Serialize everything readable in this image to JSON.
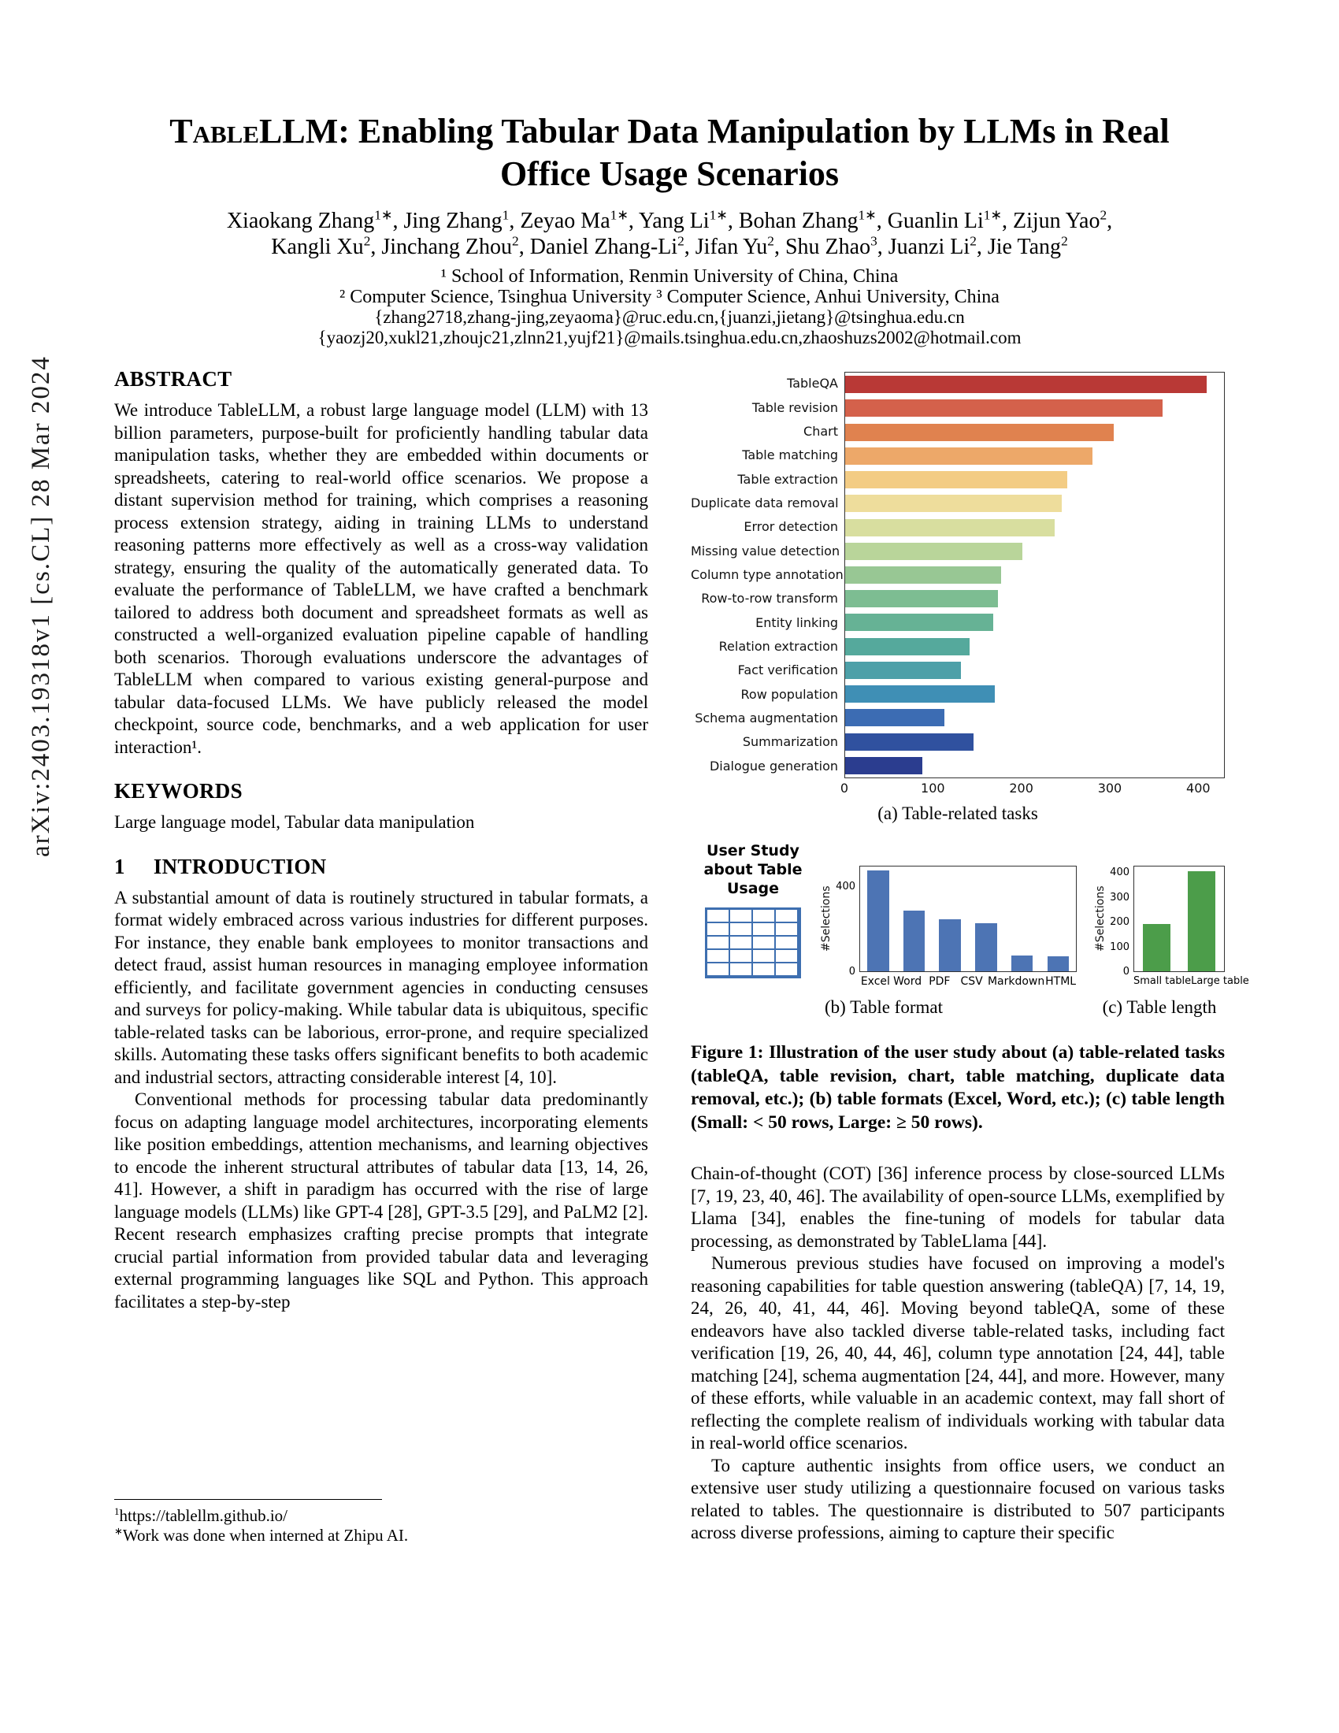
{
  "arxiv_banner": "arXiv:2403.19318v1  [cs.CL]  28 Mar 2024",
  "title": {
    "brand": "TableLLM",
    "rest": ": Enabling Tabular Data Manipulation by LLMs in Real",
    "line2": "Office Usage Scenarios"
  },
  "authors": {
    "line1": [
      {
        "name": "Xiaokang Zhang",
        "sup": "1∗"
      },
      {
        "name": "Jing Zhang",
        "sup": "1"
      },
      {
        "name": "Zeyao Ma",
        "sup": "1∗"
      },
      {
        "name": "Yang Li",
        "sup": "1∗"
      },
      {
        "name": "Bohan Zhang",
        "sup": "1∗"
      },
      {
        "name": "Guanlin Li",
        "sup": "1∗"
      },
      {
        "name": "Zijun Yao",
        "sup": "2"
      }
    ],
    "line2": [
      {
        "name": "Kangli Xu",
        "sup": "2"
      },
      {
        "name": "Jinchang Zhou",
        "sup": "2"
      },
      {
        "name": "Daniel Zhang-Li",
        "sup": "2"
      },
      {
        "name": "Jifan Yu",
        "sup": "2"
      },
      {
        "name": "Shu Zhao",
        "sup": "3"
      },
      {
        "name": "Juanzi Li",
        "sup": "2"
      },
      {
        "name": "Jie Tang",
        "sup": "2"
      }
    ]
  },
  "affiliations": [
    "¹ School of Information, Renmin University of China, China",
    "² Computer Science, Tsinghua University ³ Computer Science, Anhui University, China",
    "{zhang2718,zhang-jing,zeyaoma}@ruc.edu.cn,{juanzi,jietang}@tsinghua.edu.cn",
    "{yaozj20,xukl21,zhoujc21,zlnn21,yujf21}@mails.tsinghua.edu.cn,zhaoshuzs2002@hotmail.com"
  ],
  "abstract": {
    "heading": "ABSTRACT",
    "text": "We introduce TableLLM, a robust large language model (LLM) with 13 billion parameters, purpose-built for proficiently handling tabular data manipulation tasks, whether they are embedded within documents or spreadsheets, catering to real-world office scenarios. We propose a distant supervision method for training, which comprises a reasoning process extension strategy, aiding in training LLMs to understand reasoning patterns more effectively as well as a cross-way validation strategy, ensuring the quality of the automatically generated data. To evaluate the performance of TableLLM, we have crafted a benchmark tailored to address both document and spreadsheet formats as well as constructed a well-organized evaluation pipeline capable of handling both scenarios. Thorough evaluations underscore the advantages of TableLLM when compared to various existing general-purpose and tabular data-focused LLMs. We have publicly released the model checkpoint, source code, benchmarks, and a web application for user interaction¹."
  },
  "keywords": {
    "heading": "KEYWORDS",
    "text": "Large language model, Tabular data manipulation"
  },
  "introduction": {
    "number": "1",
    "heading": "INTRODUCTION",
    "paragraphs": [
      "A substantial amount of data is routinely structured in tabular formats, a format widely embraced across various industries for different purposes. For instance, they enable bank employees to monitor transactions and detect fraud, assist human resources in managing employee information efficiently, and facilitate government agencies in conducting censuses and surveys for policy-making. While tabular data is ubiquitous, specific table-related tasks can be laborious, error-prone, and require specialized skills. Automating these tasks offers significant benefits to both academic and industrial sectors, attracting considerable interest [4, 10].",
      "Conventional methods for processing tabular data predominantly focus on adapting language model architectures, incorporating elements like position embeddings, attention mechanisms, and learning objectives to encode the inherent structural attributes of tabular data [13, 14, 26, 41]. However, a shift in paradigm has occurred with the rise of large language models (LLMs) like GPT-4 [28], GPT-3.5 [29], and PaLM2 [2]. Recent research emphasizes crafting precise prompts that integrate crucial partial information from provided tabular data and leveraging external programming languages like SQL and Python. This approach facilitates a step-by-step"
    ]
  },
  "footnotes": [
    {
      "marker": "1",
      "text": "https://tablellm.github.io/"
    },
    {
      "marker": "∗",
      "text": "Work was done when interned at Zhipu AI."
    }
  ],
  "figure1": {
    "user_study_label": "User Study about Table Usage",
    "caption": "Figure 1: Illustration of the user study about (a) table-related tasks (tableQA, table revision, chart, table matching, duplicate data removal, etc.); (b) table formats (Excel, Word, etc.); (c) table length (Small: < 50 rows, Large: ≥ 50 rows)."
  },
  "right_column_paragraphs": [
    "Chain-of-thought (COT) [36] inference process by close-sourced LLMs [7, 19, 23, 40, 46]. The availability of open-source LLMs, exemplified by Llama [34], enables the fine-tuning of models for tabular data processing, as demonstrated by TableLlama [44].",
    "Numerous previous studies have focused on improving a model's reasoning capabilities for table question answering (tableQA) [7, 14, 19, 24, 26, 40, 41, 44, 46]. Moving beyond tableQA, some of these endeavors have also tackled diverse table-related tasks, including fact verification [19, 26, 40, 44, 46], column type annotation [24, 44], table matching [24], schema augmentation [24, 44], and more. However, many of these efforts, while valuable in an academic context, may fall short of reflecting the complete realism of individuals working with tabular data in real-world office scenarios.",
    "To capture authentic insights from office users, we conduct an extensive user study utilizing a questionnaire focused on various tasks related to tables. The questionnaire is distributed to 507 participants across diverse professions, aiming to capture their specific"
  ],
  "chart_data": [
    {
      "type": "bar",
      "orientation": "horizontal",
      "categories": [
        "TableQA",
        "Table revision",
        "Chart",
        "Table matching",
        "Table extraction",
        "Duplicate data removal",
        "Error detection",
        "Missing value detection",
        "Column type annotation",
        "Row-to-row transform",
        "Entity linking",
        "Relation extraction",
        "Fact verification",
        "Row population",
        "Schema augmentation",
        "Summarization",
        "Dialogue generation"
      ],
      "values": [
        410,
        360,
        305,
        281,
        252,
        246,
        238,
        201,
        177,
        173,
        168,
        141,
        131,
        170,
        113,
        146,
        88
      ],
      "colors": [
        "#b93936",
        "#d4614b",
        "#e0824f",
        "#eda869",
        "#f3cc84",
        "#eedd9c",
        "#d8de9f",
        "#b9d59a",
        "#98c794",
        "#7dbd92",
        "#66b295",
        "#55a99c",
        "#4da0a8",
        "#3f8fb5",
        "#3c6cb3",
        "#30519f",
        "#2b3d8f"
      ],
      "xlim": [
        0,
        430
      ],
      "xticks": [
        0,
        100,
        200,
        300,
        400
      ],
      "grid": false,
      "caption": "(a) Table-related tasks"
    },
    {
      "type": "bar",
      "categories": [
        "Excel",
        "Word",
        "PDF",
        "CSV",
        "Markdown",
        "HTML"
      ],
      "values": [
        480,
        290,
        250,
        228,
        76,
        70
      ],
      "bar_color": "#4d74b4",
      "ylim": [
        0,
        500
      ],
      "yticks": [
        0,
        400
      ],
      "ylabel": "#Selections",
      "grid": false,
      "caption": "(b) Table format"
    },
    {
      "type": "bar",
      "categories": [
        "Small table",
        "Large table"
      ],
      "values": [
        193,
        412
      ],
      "bar_color": "#4c9d4a",
      "ylim": [
        0,
        430
      ],
      "yticks": [
        0,
        100,
        200,
        300,
        400
      ],
      "ylabel": "#Selections",
      "grid": false,
      "caption": "(c) Table length"
    }
  ]
}
